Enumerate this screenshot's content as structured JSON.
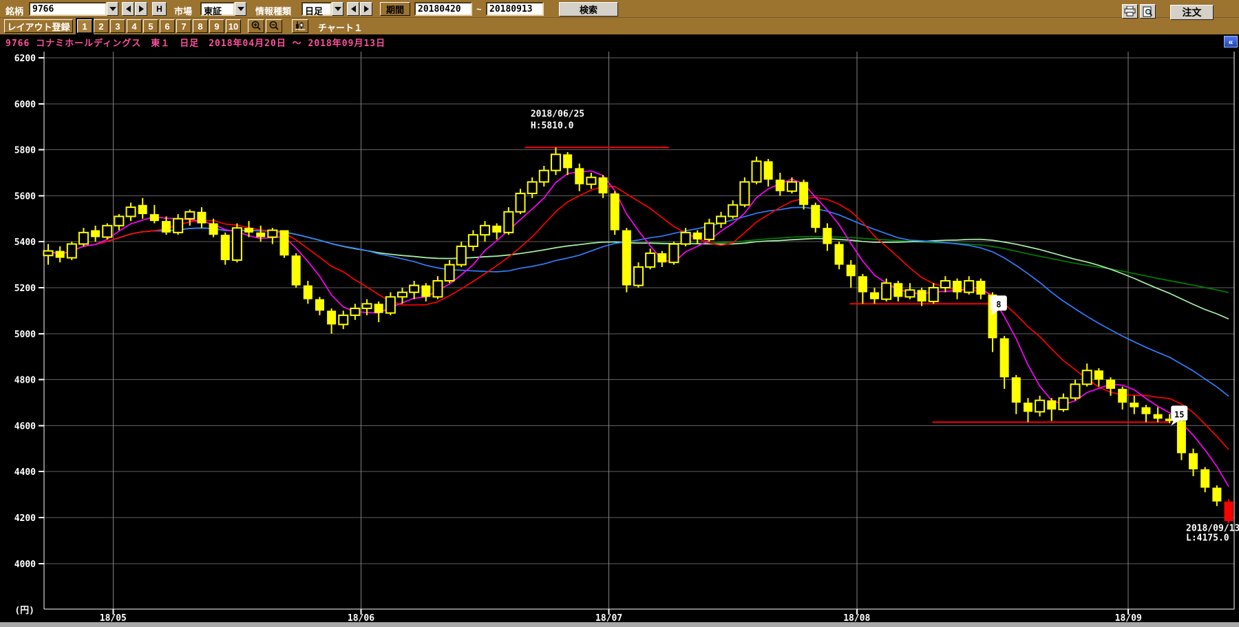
{
  "toolbar": {
    "stock_label": "銘柄",
    "stock_code": "9766",
    "h_button": "H",
    "market_label": "市場",
    "market_value": "東証",
    "info_type_label": "情報種類",
    "info_type_value": "日足",
    "period_button": "期間",
    "period_from": "20180420",
    "period_tilde": "~",
    "period_to": "20180913",
    "search_button": "検索",
    "order_button": "注文"
  },
  "toolbar2": {
    "layout_button": "レイアウト登録",
    "layout_slots": [
      "1",
      "2",
      "3",
      "4",
      "5",
      "6",
      "7",
      "8",
      "9",
      "10"
    ],
    "active_slot": "1",
    "chart_name": "チャート１"
  },
  "title_bar": {
    "text": "9766 コナミホールディングス　東１　日足　2018年04月20日 ～ 2018年09月13日",
    "color": "#ff4f9e",
    "collapse_button": "«"
  },
  "chart_data": {
    "type": "candlestick",
    "title": "9766 コナミホールディングス 日足",
    "unit_label": "(円)",
    "ylim": [
      4000,
      6200
    ],
    "y_axis": {
      "ticks": [
        6200,
        6000,
        5800,
        5600,
        5400,
        5200,
        5000,
        4800,
        4600,
        4400,
        4200,
        4000
      ]
    },
    "x_axis": {
      "months": [
        {
          "label": "18/05",
          "boundary_index": 5.5
        },
        {
          "label": "18/06",
          "boundary_index": 26.5
        },
        {
          "label": "18/07",
          "boundary_index": 47.5
        },
        {
          "label": "18/08",
          "boundary_index": 68.5
        },
        {
          "label": "18/09",
          "boundary_index": 91.5
        }
      ]
    },
    "style": {
      "up": "hollow-yellow",
      "down": "solid-yellow",
      "candle_color": "#ffff00",
      "special_color": "#ff0000"
    },
    "special": {
      "index": 100,
      "reason": "period low day"
    },
    "moving_averages": [
      {
        "period": 75,
        "color": "#008000"
      },
      {
        "period": 50,
        "color": "#aaf0aa"
      },
      {
        "period": 25,
        "color": "#2e7fff"
      },
      {
        "period": 10,
        "color": "#ff0000"
      },
      {
        "period": 5,
        "color": "#ff00ff"
      }
    ],
    "annotations": {
      "high": {
        "date": "2018/06/25",
        "label": "H:5810.0",
        "price": 5810,
        "line_start_index": 40.4,
        "line_end_index": 52.6,
        "color": "#ff0000"
      },
      "low": {
        "date": "2018/09/13",
        "label": "L:4175.0",
        "price": 4175,
        "index": 100
      }
    },
    "support_lines": [
      {
        "price": 5130,
        "start_index": 67.9,
        "end_index": 79.7,
        "badge": "8",
        "badge_dy": 0,
        "color": "#ff0000"
      },
      {
        "price": 4615,
        "start_index": 74.9,
        "end_index": 95.0,
        "badge": "15",
        "badge_dy": -12,
        "color": "#ff0000"
      }
    ],
    "ohlc_columns": [
      "date",
      "open",
      "high",
      "low",
      "close"
    ],
    "candles": [
      [
        "04/20",
        5340,
        5390,
        5300,
        5360
      ],
      [
        "04/23",
        5360,
        5380,
        5310,
        5330
      ],
      [
        "04/24",
        5330,
        5400,
        5320,
        5390
      ],
      [
        "04/25",
        5390,
        5460,
        5380,
        5440
      ],
      [
        "04/26",
        5450,
        5470,
        5400,
        5420
      ],
      [
        "04/27",
        5420,
        5480,
        5410,
        5470
      ],
      [
        "05/01",
        5470,
        5520,
        5450,
        5510
      ],
      [
        "05/02",
        5510,
        5570,
        5490,
        5550
      ],
      [
        "05/07",
        5560,
        5590,
        5500,
        5520
      ],
      [
        "05/08",
        5520,
        5560,
        5480,
        5490
      ],
      [
        "05/09",
        5490,
        5510,
        5430,
        5440
      ],
      [
        "05/10",
        5440,
        5520,
        5430,
        5500
      ],
      [
        "05/11",
        5500,
        5540,
        5470,
        5530
      ],
      [
        "05/14",
        5530,
        5550,
        5460,
        5480
      ],
      [
        "05/15",
        5480,
        5500,
        5420,
        5430
      ],
      [
        "05/16",
        5430,
        5440,
        5300,
        5320
      ],
      [
        "05/17",
        5320,
        5480,
        5310,
        5460
      ],
      [
        "05/18",
        5460,
        5490,
        5420,
        5440
      ],
      [
        "05/21",
        5440,
        5470,
        5400,
        5420
      ],
      [
        "05/22",
        5420,
        5460,
        5390,
        5450
      ],
      [
        "05/23",
        5450,
        5450,
        5330,
        5340
      ],
      [
        "05/24",
        5340,
        5350,
        5200,
        5210
      ],
      [
        "05/25",
        5210,
        5230,
        5130,
        5150
      ],
      [
        "05/28",
        5150,
        5160,
        5080,
        5100
      ],
      [
        "05/29",
        5100,
        5110,
        5000,
        5040
      ],
      [
        "05/30",
        5040,
        5100,
        5020,
        5080
      ],
      [
        "05/31",
        5080,
        5130,
        5060,
        5110
      ],
      [
        "06/01",
        5110,
        5150,
        5080,
        5130
      ],
      [
        "06/04",
        5130,
        5140,
        5050,
        5090
      ],
      [
        "06/05",
        5090,
        5180,
        5080,
        5160
      ],
      [
        "06/06",
        5160,
        5200,
        5130,
        5180
      ],
      [
        "06/07",
        5180,
        5230,
        5150,
        5210
      ],
      [
        "06/08",
        5210,
        5220,
        5140,
        5160
      ],
      [
        "06/11",
        5160,
        5250,
        5150,
        5230
      ],
      [
        "06/12",
        5230,
        5320,
        5220,
        5300
      ],
      [
        "06/13",
        5300,
        5400,
        5290,
        5380
      ],
      [
        "06/14",
        5380,
        5450,
        5360,
        5430
      ],
      [
        "06/15",
        5430,
        5490,
        5400,
        5470
      ],
      [
        "06/18",
        5470,
        5480,
        5410,
        5440
      ],
      [
        "06/19",
        5440,
        5550,
        5430,
        5530
      ],
      [
        "06/20",
        5530,
        5630,
        5520,
        5610
      ],
      [
        "06/21",
        5610,
        5680,
        5590,
        5660
      ],
      [
        "06/22",
        5660,
        5730,
        5640,
        5710
      ],
      [
        "06/25",
        5710,
        5810,
        5690,
        5780
      ],
      [
        "06/26",
        5780,
        5790,
        5690,
        5720
      ],
      [
        "06/27",
        5720,
        5740,
        5620,
        5650
      ],
      [
        "06/28",
        5650,
        5700,
        5630,
        5680
      ],
      [
        "06/29",
        5680,
        5690,
        5590,
        5610
      ],
      [
        "07/02",
        5610,
        5620,
        5430,
        5450
      ],
      [
        "07/03",
        5450,
        5460,
        5180,
        5210
      ],
      [
        "07/04",
        5210,
        5310,
        5200,
        5290
      ],
      [
        "07/05",
        5290,
        5370,
        5280,
        5350
      ],
      [
        "07/06",
        5350,
        5360,
        5290,
        5310
      ],
      [
        "07/09",
        5310,
        5400,
        5300,
        5390
      ],
      [
        "07/10",
        5390,
        5460,
        5380,
        5440
      ],
      [
        "07/11",
        5440,
        5450,
        5390,
        5410
      ],
      [
        "07/12",
        5410,
        5500,
        5400,
        5480
      ],
      [
        "07/13",
        5480,
        5530,
        5460,
        5510
      ],
      [
        "07/17",
        5510,
        5580,
        5500,
        5560
      ],
      [
        "07/18",
        5560,
        5680,
        5550,
        5660
      ],
      [
        "07/19",
        5660,
        5770,
        5650,
        5750
      ],
      [
        "07/20",
        5750,
        5760,
        5640,
        5670
      ],
      [
        "07/23",
        5670,
        5700,
        5600,
        5620
      ],
      [
        "07/24",
        5620,
        5680,
        5610,
        5660
      ],
      [
        "07/25",
        5660,
        5670,
        5540,
        5560
      ],
      [
        "07/26",
        5560,
        5570,
        5440,
        5460
      ],
      [
        "07/27",
        5460,
        5480,
        5360,
        5390
      ],
      [
        "07/30",
        5390,
        5400,
        5280,
        5300
      ],
      [
        "07/31",
        5300,
        5320,
        5200,
        5250
      ],
      [
        "08/01",
        5250,
        5260,
        5130,
        5180
      ],
      [
        "08/02",
        5180,
        5200,
        5130,
        5150
      ],
      [
        "08/03",
        5150,
        5240,
        5140,
        5220
      ],
      [
        "08/06",
        5220,
        5230,
        5140,
        5160
      ],
      [
        "08/07",
        5160,
        5220,
        5150,
        5190
      ],
      [
        "08/08",
        5190,
        5200,
        5120,
        5140
      ],
      [
        "08/09",
        5140,
        5220,
        5130,
        5200
      ],
      [
        "08/10",
        5200,
        5250,
        5180,
        5230
      ],
      [
        "08/13",
        5230,
        5240,
        5150,
        5180
      ],
      [
        "08/14",
        5180,
        5250,
        5170,
        5230
      ],
      [
        "08/15",
        5230,
        5240,
        5150,
        5170
      ],
      [
        "08/16",
        5170,
        5180,
        4920,
        4980
      ],
      [
        "08/17",
        4980,
        4990,
        4760,
        4810
      ],
      [
        "08/20",
        4810,
        4820,
        4650,
        4700
      ],
      [
        "08/21",
        4700,
        4720,
        4615,
        4660
      ],
      [
        "08/22",
        4660,
        4730,
        4640,
        4710
      ],
      [
        "08/23",
        4710,
        4720,
        4620,
        4670
      ],
      [
        "08/24",
        4670,
        4740,
        4660,
        4720
      ],
      [
        "08/27",
        4720,
        4800,
        4710,
        4780
      ],
      [
        "08/28",
        4780,
        4870,
        4770,
        4840
      ],
      [
        "08/29",
        4840,
        4850,
        4770,
        4800
      ],
      [
        "08/30",
        4800,
        4810,
        4730,
        4760
      ],
      [
        "08/31",
        4760,
        4770,
        4670,
        4700
      ],
      [
        "09/03",
        4700,
        4730,
        4650,
        4680
      ],
      [
        "09/04",
        4680,
        4690,
        4615,
        4650
      ],
      [
        "09/05",
        4650,
        4680,
        4615,
        4630
      ],
      [
        "09/06",
        4630,
        4650,
        4610,
        4620
      ],
      [
        "09/07",
        4620,
        4630,
        4450,
        4480
      ],
      [
        "09/10",
        4480,
        4500,
        4380,
        4410
      ],
      [
        "09/11",
        4410,
        4420,
        4310,
        4330
      ],
      [
        "09/12",
        4330,
        4340,
        4250,
        4270
      ],
      [
        "09/13",
        4270,
        4280,
        4175,
        4185
      ]
    ]
  }
}
